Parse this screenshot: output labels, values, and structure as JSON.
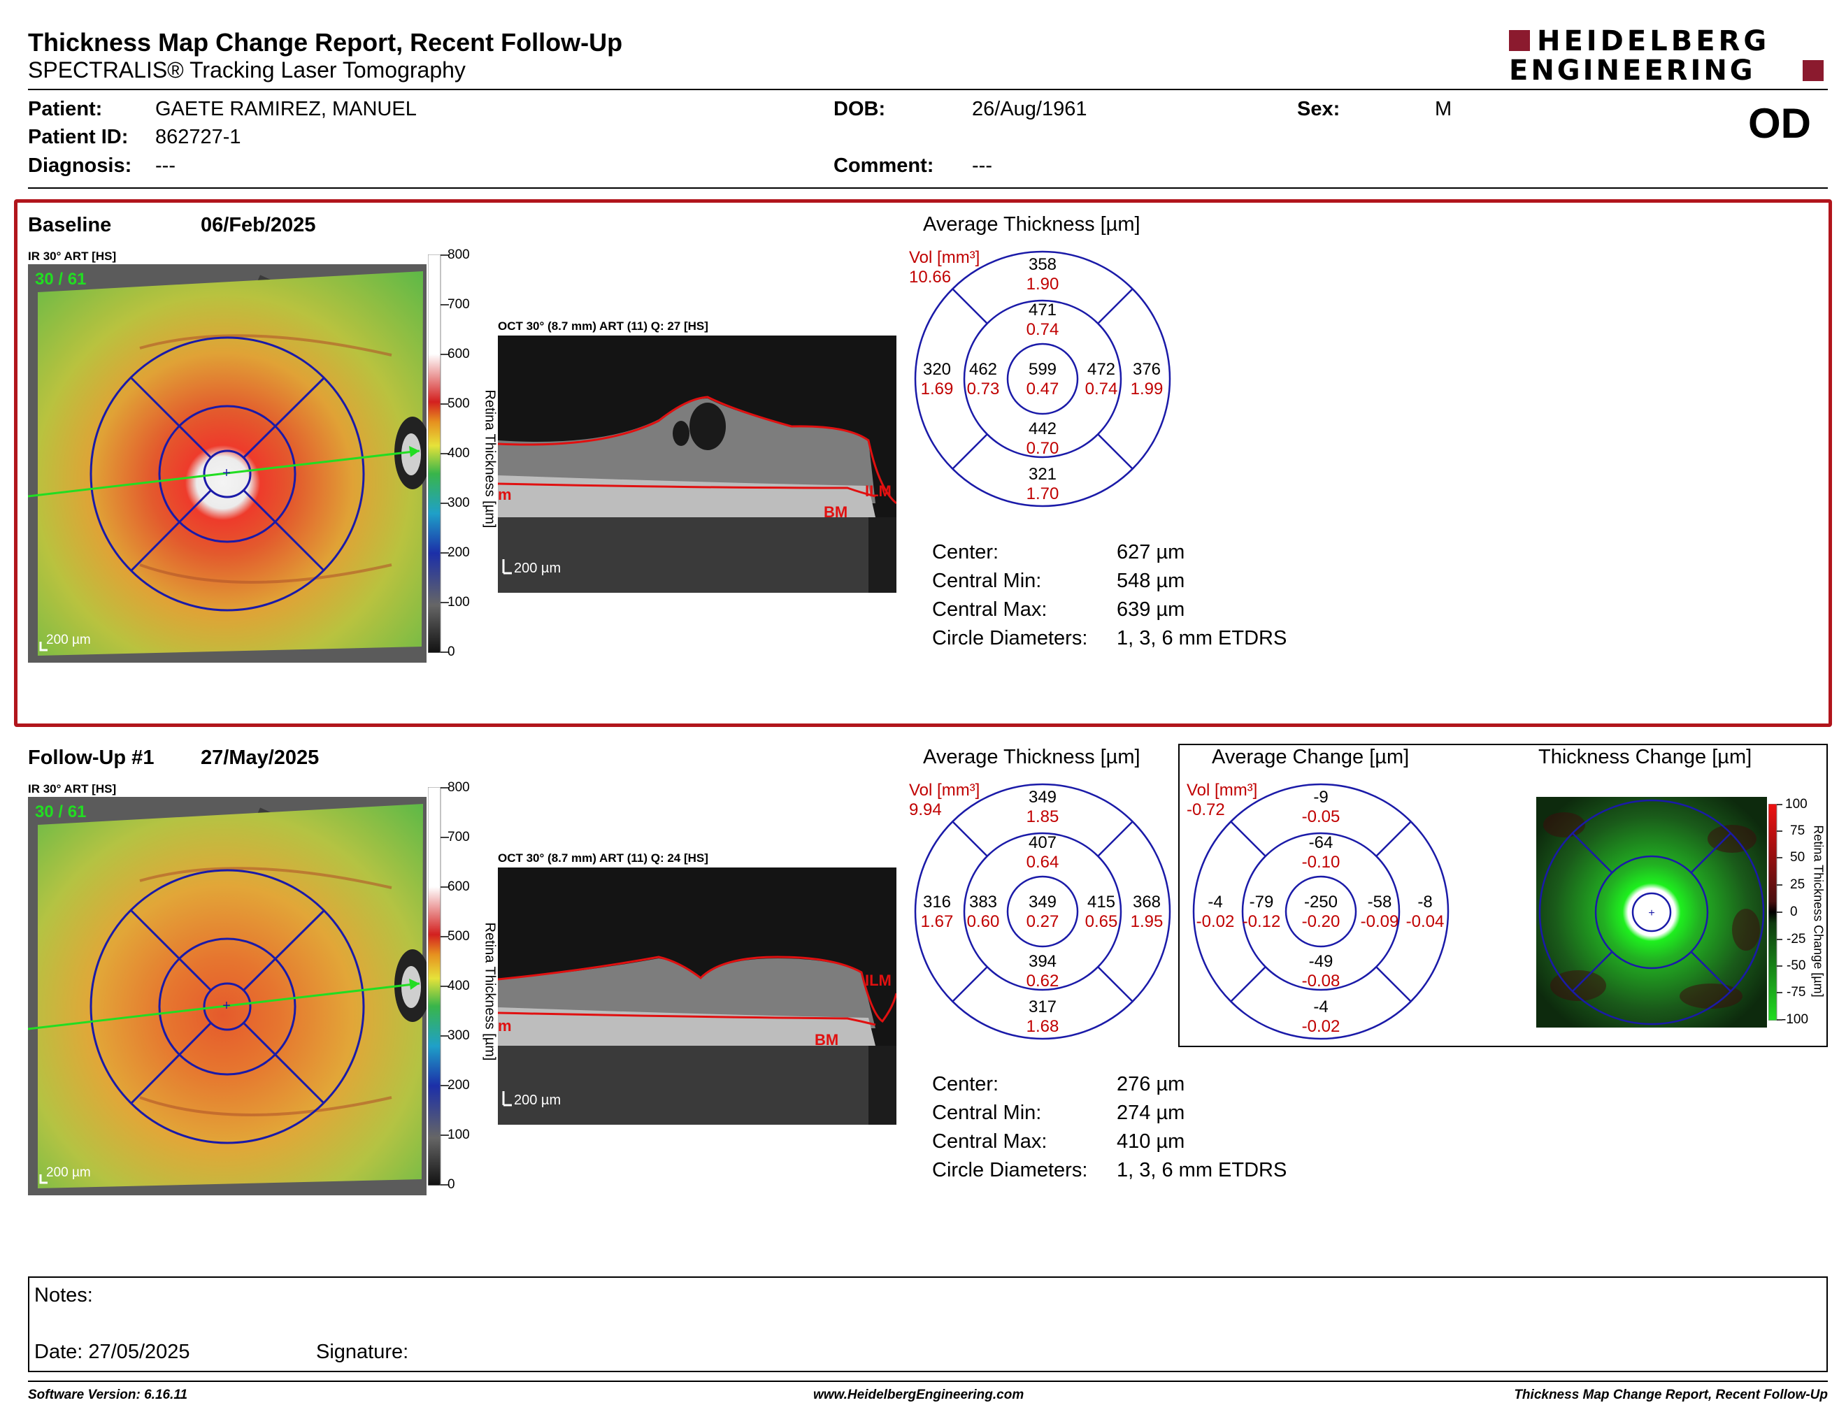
{
  "header": {
    "title": "Thickness Map Change Report, Recent Follow-Up",
    "subtitle": "SPECTRALIS® Tracking Laser Tomography",
    "logo_line1": "HEIDELBERG",
    "logo_line2": "ENGINEERING",
    "eye": "OD"
  },
  "patient": {
    "name_label": "Patient:",
    "name": "GAETE RAMIREZ, MANUEL",
    "dob_label": "DOB:",
    "dob": "26/Aug/1961",
    "sex_label": "Sex:",
    "sex": "M",
    "id_label": "Patient ID:",
    "id": "862727-1",
    "diag_label": "Diagnosis:",
    "diag": "---",
    "comment_label": "Comment:",
    "comment": "---"
  },
  "baseline": {
    "label": "Baseline",
    "date": "06/Feb/2025",
    "ir_label": "IR 30° ART [HS]",
    "ir_counter": "30 / 61",
    "ir_scale": "200 µm",
    "oct_label": "OCT 30° (8.7 mm) ART (11) Q: 27 [HS]",
    "oct_scale": "200 µm",
    "oct_tags": {
      "ilm": "ILM",
      "bm": "BM",
      "im": "m"
    },
    "colorbar_ticks": [
      "800",
      "700",
      "600",
      "500",
      "400",
      "300",
      "200",
      "100",
      "0"
    ],
    "colorbar_label": "Retina Thickness [µm]",
    "avg_title": "Average Thickness [µm]",
    "vol_label": "Vol [mm³]",
    "vol_total": "10.66",
    "sectors": {
      "outer_sup": {
        "t": "358",
        "v": "1.90"
      },
      "inner_sup": {
        "t": "471",
        "v": "0.74"
      },
      "outer_tem": {
        "t": "320",
        "v": "1.69"
      },
      "inner_tem": {
        "t": "462",
        "v": "0.73"
      },
      "center": {
        "t": "599",
        "v": "0.47"
      },
      "inner_nas": {
        "t": "472",
        "v": "0.74"
      },
      "outer_nas": {
        "t": "376",
        "v": "1.99"
      },
      "inner_inf": {
        "t": "442",
        "v": "0.70"
      },
      "outer_inf": {
        "t": "321",
        "v": "1.70"
      }
    },
    "stats": [
      {
        "label": "Center:",
        "value": "627 µm"
      },
      {
        "label": "Central Min:",
        "value": "548 µm"
      },
      {
        "label": "Central Max:",
        "value": "639 µm"
      },
      {
        "label": "Circle Diameters:",
        "value": "1, 3, 6 mm ETDRS"
      }
    ]
  },
  "followup": {
    "label": "Follow-Up #1",
    "date": "27/May/2025",
    "ir_label": "IR 30° ART [HS]",
    "ir_counter": "30 / 61",
    "ir_scale": "200 µm",
    "oct_label": "OCT 30° (8.7 mm) ART (11) Q: 24 [HS]",
    "oct_scale": "200 µm",
    "oct_tags": {
      "ilm": "ILM",
      "bm": "BM",
      "im": "m"
    },
    "colorbar_ticks": [
      "800",
      "700",
      "600",
      "500",
      "400",
      "300",
      "200",
      "100",
      "0"
    ],
    "colorbar_label": "Retina Thickness [µm]",
    "avg_title": "Average Thickness [µm]",
    "vol_label": "Vol [mm³]",
    "vol_total": "9.94",
    "sectors": {
      "outer_sup": {
        "t": "349",
        "v": "1.85"
      },
      "inner_sup": {
        "t": "407",
        "v": "0.64"
      },
      "outer_tem": {
        "t": "316",
        "v": "1.67"
      },
      "inner_tem": {
        "t": "383",
        "v": "0.60"
      },
      "center": {
        "t": "349",
        "v": "0.27"
      },
      "inner_nas": {
        "t": "415",
        "v": "0.65"
      },
      "outer_nas": {
        "t": "368",
        "v": "1.95"
      },
      "inner_inf": {
        "t": "394",
        "v": "0.62"
      },
      "outer_inf": {
        "t": "317",
        "v": "1.68"
      }
    },
    "stats": [
      {
        "label": "Center:",
        "value": "276 µm"
      },
      {
        "label": "Central Min:",
        "value": "274 µm"
      },
      {
        "label": "Central Max:",
        "value": "410 µm"
      },
      {
        "label": "Circle Diameters:",
        "value": "1, 3, 6 mm ETDRS"
      }
    ]
  },
  "change": {
    "avg_title": "Average Change [µm]",
    "vol_label": "Vol [mm³]",
    "vol_total": "-0.72",
    "sectors": {
      "outer_sup": {
        "t": "-9",
        "v": "-0.05"
      },
      "inner_sup": {
        "t": "-64",
        "v": "-0.10"
      },
      "outer_tem": {
        "t": "-4",
        "v": "-0.02"
      },
      "inner_tem": {
        "t": "-79",
        "v": "-0.12"
      },
      "center": {
        "t": "-250",
        "v": "-0.20"
      },
      "inner_nas": {
        "t": "-58",
        "v": "-0.09"
      },
      "outer_nas": {
        "t": "-8",
        "v": "-0.04"
      },
      "inner_inf": {
        "t": "-49",
        "v": "-0.08"
      },
      "outer_inf": {
        "t": "-4",
        "v": "-0.02"
      }
    },
    "map_title": "Thickness Change [µm]",
    "map_ticks": [
      "100",
      "75",
      "50",
      "25",
      "0",
      "-25",
      "-50",
      "-75",
      "-100"
    ],
    "map_bar_label": "Retina Thickness Change [µm]"
  },
  "notes": {
    "label": "Notes:",
    "date": "Date: 27/05/2025",
    "signature": "Signature:"
  },
  "footer": {
    "software": "Software Version: 6.16.11",
    "website": "www.HeidelbergEngineering.com",
    "report": "Thickness Map Change Report, Recent Follow-Up"
  },
  "colors": {
    "frame": "#b1151c",
    "grid": "#1a1aa8",
    "logo": "#8b1a2e"
  }
}
